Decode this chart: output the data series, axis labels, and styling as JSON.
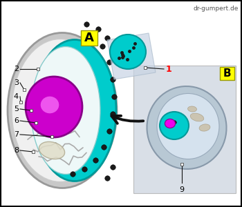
{
  "watermark": "dr-gumpert.de",
  "bg_color": "#ffffff",
  "border_color": "#000000",
  "label_A_bg": "#ffff00",
  "label_B_bg": "#ffff00",
  "label_1_color": "#ff0000",
  "label_color": "#000000",
  "teal_color": "#00cccc",
  "teal_dark": "#009999",
  "magenta_nucleus": "#cc00cc",
  "magenta_bright": "#ee44ee",
  "shadow_panel_color": "#cdd5e0",
  "arrow_color": "#111111",
  "pore_color": "#1a1a1a"
}
